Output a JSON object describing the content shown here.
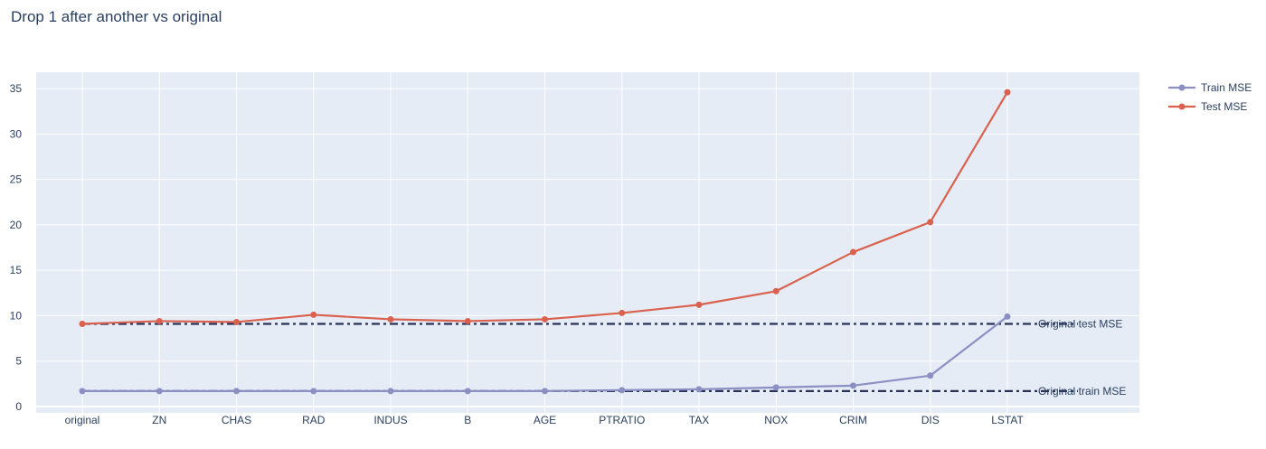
{
  "chart_data": {
    "type": "line",
    "title": "Drop 1 after another vs original",
    "xlabel": "",
    "ylabel": "",
    "categories": [
      "original",
      "ZN",
      "CHAS",
      "RAD",
      "INDUS",
      "B",
      "AGE",
      "PTRATIO",
      "TAX",
      "NOX",
      "CRIM",
      "DIS",
      "LSTAT"
    ],
    "series": [
      {
        "name": "Train MSE",
        "color": "#8c8fc2",
        "values": [
          1.7,
          1.7,
          1.7,
          1.7,
          1.7,
          1.7,
          1.7,
          1.8,
          1.9,
          2.1,
          2.3,
          3.4,
          9.9
        ]
      },
      {
        "name": "Test MSE",
        "color": "#d9614e",
        "values": [
          9.1,
          9.4,
          9.3,
          10.1,
          9.6,
          9.4,
          9.6,
          10.3,
          11.2,
          12.7,
          17.0,
          20.3,
          34.6
        ]
      }
    ],
    "reference_lines": [
      {
        "label": "Original test MSE",
        "value": 9.1,
        "color": "#2a3157",
        "dash": "dashdot"
      },
      {
        "label": "Original train MSE",
        "value": 1.7,
        "color": "#2a3157",
        "dash": "dashdot"
      }
    ],
    "ylim": [
      -0.7,
      36.8
    ],
    "yticks": [
      0,
      5,
      10,
      15,
      20,
      25,
      30,
      35
    ],
    "grid": true,
    "legend_position": "top-right",
    "plot_bg": "#e5ecf6",
    "grid_color": "#ffffff",
    "text_color": "#2a3f5f"
  }
}
